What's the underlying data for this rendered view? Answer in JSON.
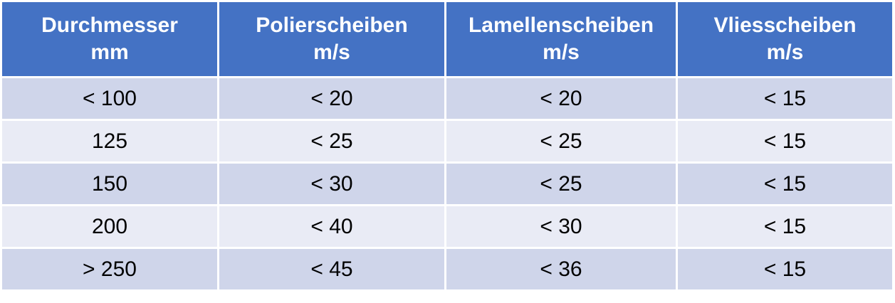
{
  "table": {
    "header": [
      [
        "Durchmesser",
        "mm"
      ],
      [
        "Polierscheiben",
        "m/s"
      ],
      [
        "Lamellenscheiben",
        "m/s"
      ],
      [
        "Vliesscheiben",
        "m/s"
      ]
    ],
    "rows": [
      [
        "< 100",
        "< 20",
        "< 20",
        "< 15"
      ],
      [
        "125",
        "< 25",
        "< 25",
        "< 15"
      ],
      [
        "150",
        "< 30",
        "< 25",
        "< 15"
      ],
      [
        "200",
        "< 40",
        "< 30",
        "< 15"
      ],
      [
        "> 250",
        "< 45",
        "< 36",
        "< 15"
      ]
    ]
  }
}
